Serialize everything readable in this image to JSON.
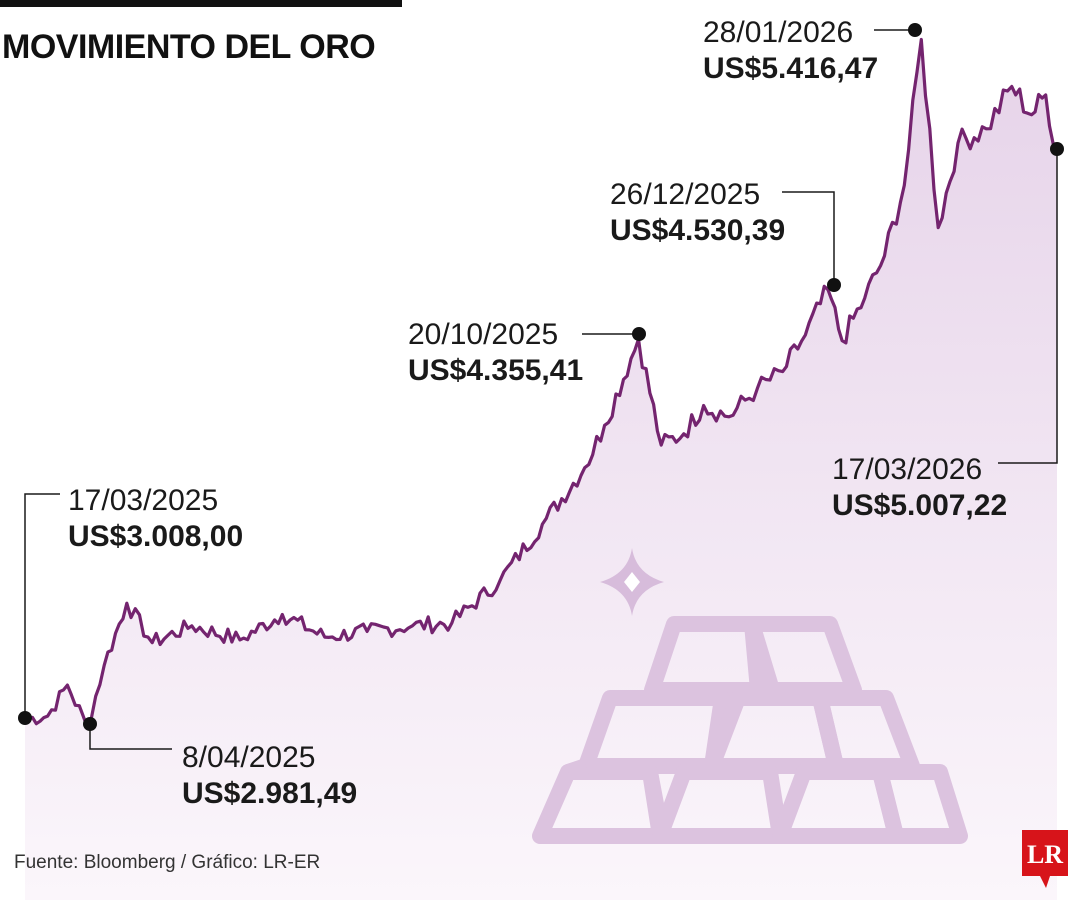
{
  "colors": {
    "line": "#74246f",
    "area_top": "#e6d3e9",
    "area_bottom": "#fbf6fb",
    "bars": "#dcc3df",
    "leader": "#1a1a1a",
    "logo": "#d7141a"
  },
  "source": "Fuente: Bloomberg / Gráfico: LR-ER",
  "logo_text": "LR",
  "chart_data": {
    "type": "area",
    "title": "MOVIMIENTO DEL ORO",
    "xlabel": "",
    "ylabel": "",
    "grid": false,
    "x_range": [
      "17/03/2025",
      "17/03/2026"
    ],
    "y_range": [
      2900,
      5450
    ],
    "series": [
      {
        "x": [
          "17/03/2025",
          "25/03/2025",
          "01/04/2025",
          "08/04/2025",
          "14/04/2025",
          "22/04/2025",
          "01/05/2025",
          "15/05/2025",
          "01/06/2025",
          "16/06/2025",
          "01/07/2025",
          "16/07/2025",
          "01/08/2025",
          "15/08/2025",
          "01/09/2025",
          "16/09/2025",
          "01/10/2025",
          "08/10/2025",
          "20/10/2025",
          "28/10/2025",
          "05/11/2025",
          "12/11/2025",
          "21/11/2025",
          "01/12/2025",
          "10/12/2025",
          "18/12/2025",
          "26/12/2025",
          "31/12/2025",
          "08/01/2026",
          "15/01/2026",
          "22/01/2026",
          "28/01/2026",
          "03/02/2026",
          "10/02/2026",
          "20/02/2026",
          "01/03/2026",
          "08/03/2026",
          "13/03/2026",
          "17/03/2026"
        ],
        "values": [
          3008.0,
          3020,
          3130,
          2981.49,
          3200,
          3420,
          3280,
          3340,
          3290,
          3380,
          3300,
          3320,
          3340,
          3350,
          3500,
          3700,
          3900,
          4050,
          4355.41,
          3980,
          4020,
          4120,
          4080,
          4180,
          4240,
          4370,
          4530.39,
          4350,
          4500,
          4650,
          4900,
          5416.47,
          4750,
          5050,
          5100,
          5250,
          5150,
          5220,
          5007.22
        ]
      }
    ],
    "annotations": [
      {
        "date": "17/03/2025",
        "value": "US$3.008,00"
      },
      {
        "date": "8/04/2025",
        "value": "US$2.981,49"
      },
      {
        "date": "20/10/2025",
        "value": "US$4.355,41"
      },
      {
        "date": "26/12/2025",
        "value": "US$4.530,39"
      },
      {
        "date": "28/01/2026",
        "value": "US$5.416,47"
      },
      {
        "date": "17/03/2026",
        "value": "US$5.007,22"
      }
    ]
  }
}
